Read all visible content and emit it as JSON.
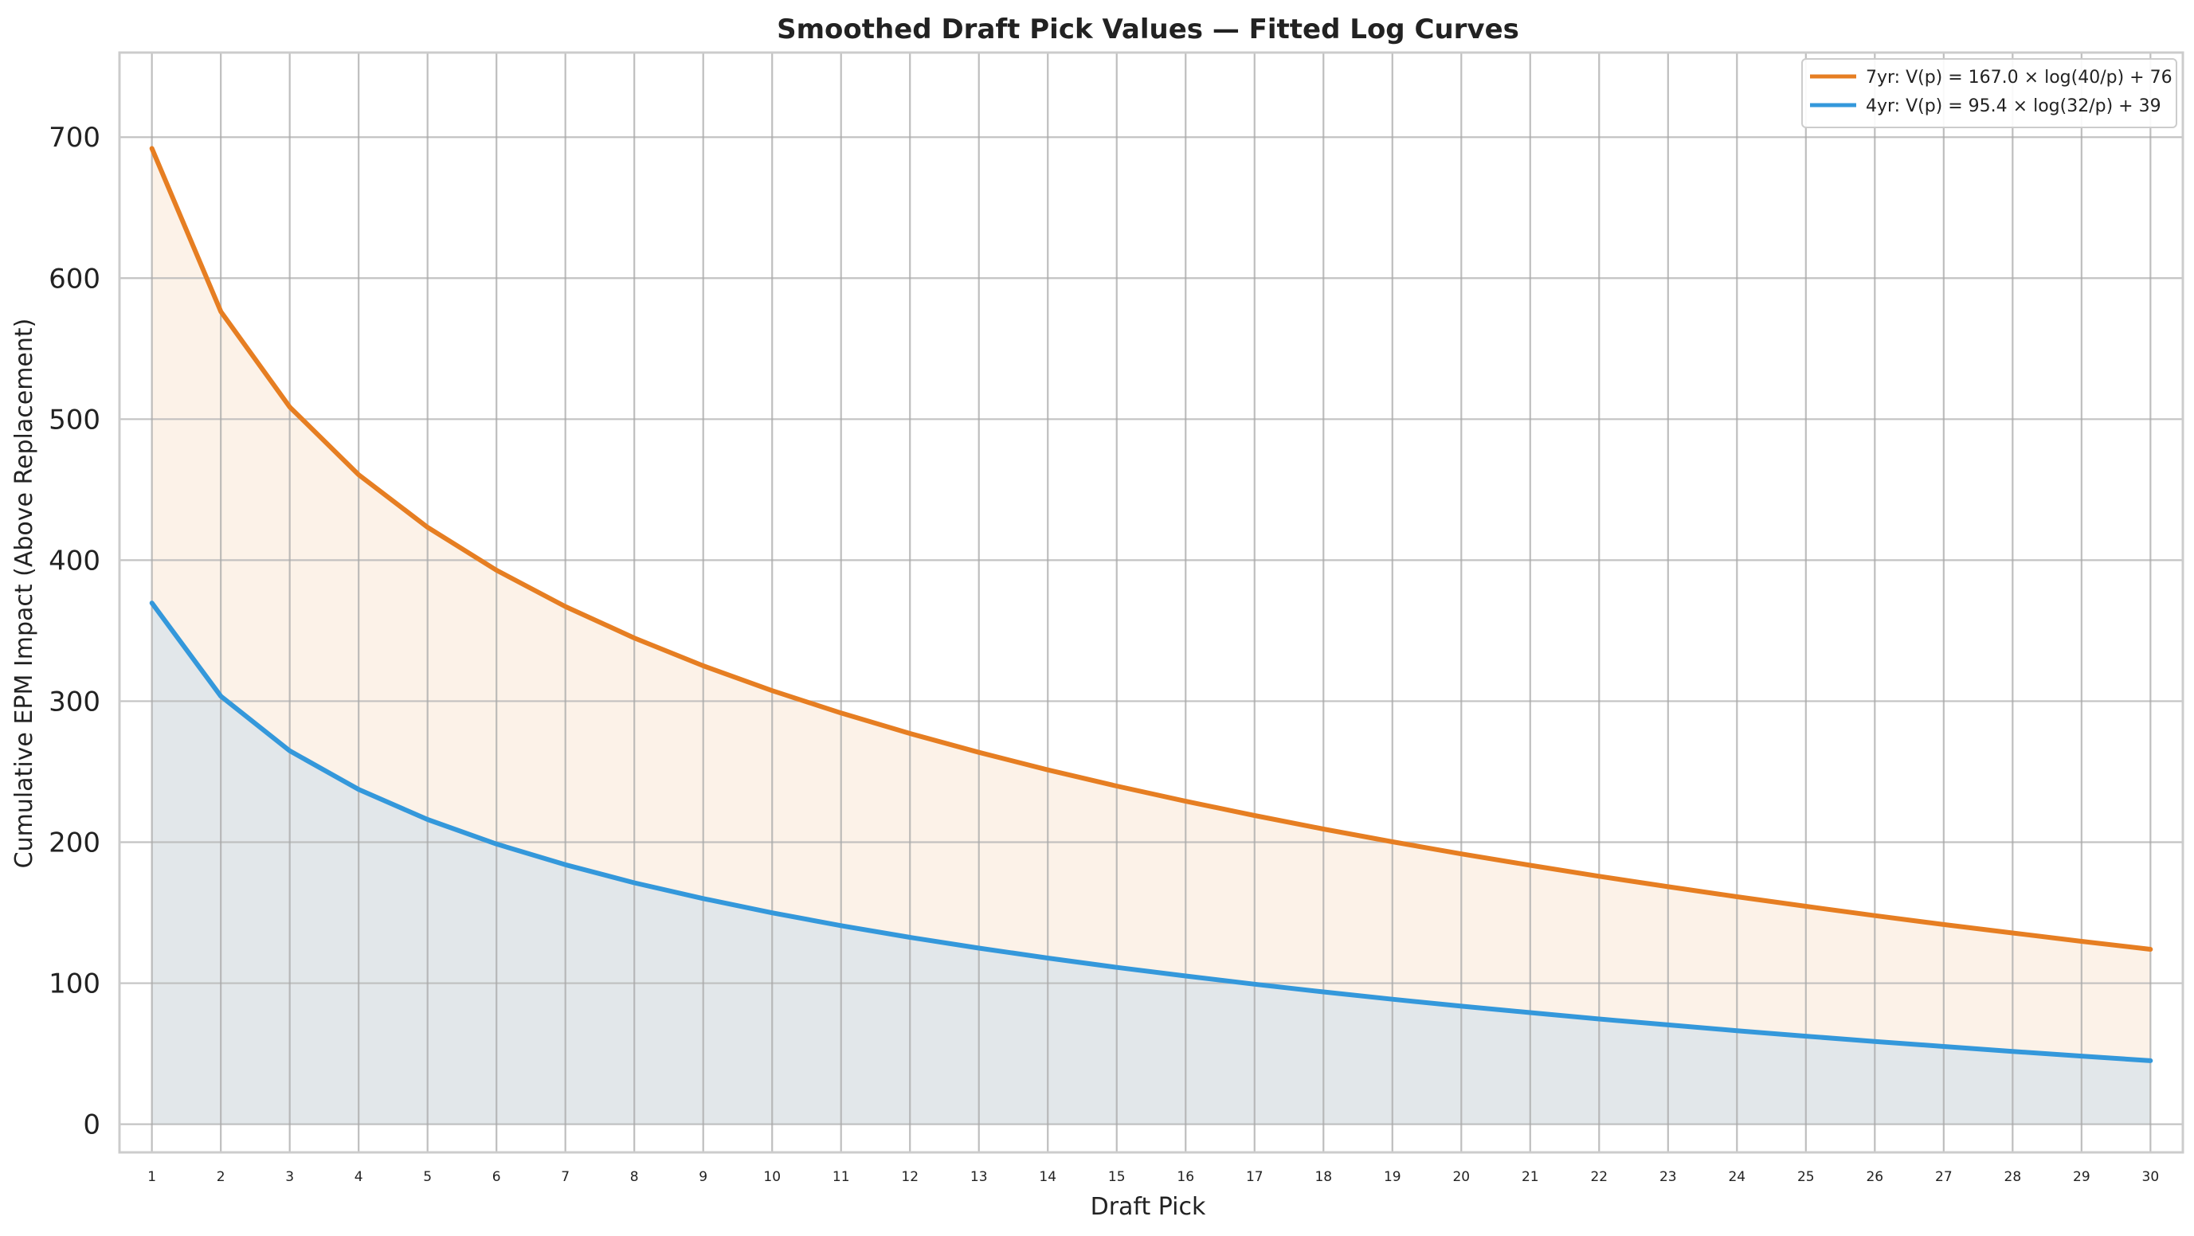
{
  "chart_data": {
    "type": "line",
    "title": "Smoothed Draft Pick Values — Fitted Log Curves",
    "xlabel": "Draft Pick",
    "ylabel": "Cumulative EPM Impact (Above Replacement)",
    "x": [
      1,
      2,
      3,
      4,
      5,
      6,
      7,
      8,
      9,
      10,
      11,
      12,
      13,
      14,
      15,
      16,
      17,
      18,
      19,
      20,
      21,
      22,
      23,
      24,
      25,
      26,
      27,
      28,
      29,
      30
    ],
    "xlim": [
      0.53,
      30.47
    ],
    "ylim": [
      -20,
      760
    ],
    "yticks": [
      0,
      100,
      200,
      300,
      400,
      500,
      600,
      700
    ],
    "grid": true,
    "legend_position": "top-right",
    "series": [
      {
        "name": "7yr: V(p) = 167.0 × log(40/p) + 76",
        "color": "#e67e22",
        "fill_color": "#e67e22",
        "values": [
          692.0,
          576.3,
          508.6,
          460.6,
          423.3,
          392.9,
          367.1,
          344.8,
          325.1,
          307.5,
          291.6,
          277.1,
          263.7,
          251.3,
          239.8,
          229.0,
          218.9,
          209.3,
          200.3,
          191.7,
          183.6,
          175.8,
          168.4,
          161.3,
          154.5,
          147.9,
          141.6,
          135.6,
          129.7,
          124.0
        ]
      },
      {
        "name": "4yr: V(p) = 95.4 × log(32/p) + 39",
        "color": "#3498db",
        "fill_color": "#d5dde1",
        "values": [
          369.6,
          303.5,
          264.8,
          237.4,
          216.1,
          198.7,
          184.0,
          171.2,
          160.0,
          149.9,
          140.8,
          132.5,
          124.9,
          117.8,
          111.2,
          105.1,
          99.3,
          93.8,
          88.6,
          83.7,
          79.1,
          74.6,
          70.4,
          66.3,
          62.4,
          58.7,
          55.1,
          51.6,
          48.3,
          45.0
        ]
      }
    ]
  }
}
